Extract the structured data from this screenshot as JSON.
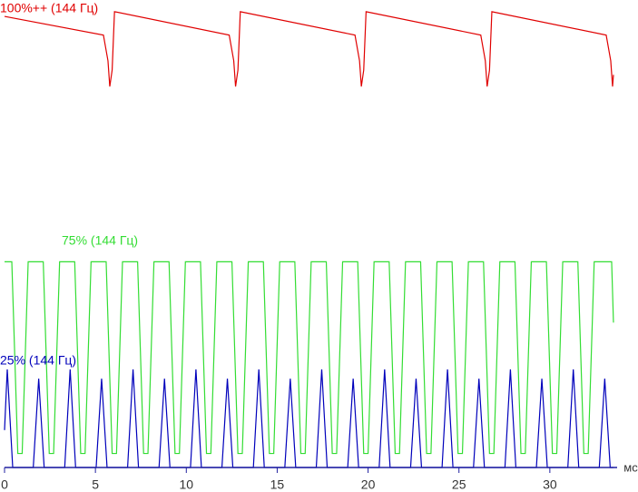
{
  "chart_data": {
    "type": "line",
    "x_unit": "мс",
    "xlim": [
      0,
      34.8
    ],
    "ylim": [
      0,
      100
    ],
    "xticks": [
      0,
      5,
      10,
      15,
      20,
      25,
      30
    ],
    "series": [
      {
        "name": "100%++ (144 Гц)",
        "color": "#e00000",
        "x": [
          0,
          5.44,
          5.69,
          5.79,
          5.92,
          6.05,
          12.36,
          12.61,
          12.71,
          12.84,
          12.97,
          19.28,
          19.53,
          19.63,
          19.76,
          19.89,
          26.2,
          26.45,
          26.55,
          26.68,
          26.81,
          33.1,
          33.35,
          33.45,
          33.5
        ],
        "values": [
          96.5,
          92.5,
          87,
          81.5,
          85,
          97.5,
          92.5,
          87,
          81.5,
          85,
          97.5,
          92.5,
          87,
          81.5,
          85,
          97.5,
          92.5,
          87,
          81.5,
          85,
          97.5,
          92.5,
          87,
          81.5,
          84
        ]
      },
      {
        "name": "75% (144 Гц)",
        "color": "#33dd33",
        "x": [
          0,
          0.4,
          0.73,
          0.97,
          1.3,
          2.13,
          2.46,
          2.7,
          3.03,
          3.86,
          4.19,
          4.43,
          4.76,
          5.59,
          5.92,
          6.16,
          6.49,
          7.32,
          7.65,
          7.89,
          8.22,
          9.05,
          9.38,
          9.62,
          9.95,
          10.78,
          11.11,
          11.35,
          11.68,
          12.51,
          12.84,
          13.08,
          13.41,
          14.24,
          14.57,
          14.81,
          15.14,
          15.97,
          16.3,
          16.54,
          16.87,
          17.7,
          18.03,
          18.27,
          18.6,
          19.43,
          19.76,
          20.0,
          20.33,
          21.16,
          21.49,
          21.73,
          22.06,
          22.89,
          23.22,
          23.46,
          23.79,
          24.62,
          24.95,
          25.19,
          25.52,
          26.35,
          26.68,
          26.92,
          27.25,
          28.08,
          28.41,
          28.65,
          28.98,
          29.81,
          30.14,
          30.38,
          30.71,
          31.54,
          31.87,
          32.11,
          32.44,
          33.4,
          33.5
        ],
        "values": [
          44,
          44,
          3,
          3,
          44,
          44,
          3,
          3,
          44,
          44,
          3,
          3,
          44,
          44,
          3,
          3,
          44,
          44,
          3,
          3,
          44,
          44,
          3,
          3,
          44,
          44,
          3,
          3,
          44,
          44,
          3,
          3,
          44,
          44,
          3,
          3,
          44,
          44,
          3,
          3,
          44,
          44,
          3,
          3,
          44,
          44,
          3,
          3,
          44,
          44,
          3,
          3,
          44,
          44,
          3,
          3,
          44,
          44,
          3,
          3,
          44,
          44,
          3,
          3,
          44,
          44,
          3,
          3,
          44,
          44,
          3,
          3,
          44,
          44,
          3,
          3,
          44,
          44,
          31
        ]
      },
      {
        "name": "25% (144 Гц)",
        "color": "#0000bb",
        "x": [
          0,
          0.15,
          0.45,
          1.58,
          1.88,
          2.18,
          3.31,
          3.61,
          3.91,
          5.04,
          5.34,
          5.64,
          6.77,
          7.07,
          7.37,
          8.5,
          8.8,
          9.1,
          10.23,
          10.53,
          10.83,
          11.96,
          12.26,
          12.56,
          13.69,
          13.99,
          14.29,
          15.42,
          15.72,
          16.02,
          17.15,
          17.45,
          17.75,
          18.88,
          19.18,
          19.48,
          20.61,
          20.91,
          21.21,
          22.34,
          22.64,
          22.94,
          24.07,
          24.37,
          24.67,
          25.8,
          26.1,
          26.4,
          27.53,
          27.83,
          28.13,
          29.26,
          29.56,
          29.86,
          30.99,
          31.29,
          31.59,
          32.72,
          33.02,
          33.32,
          33.5
        ],
        "values": [
          8,
          21,
          0,
          0,
          19,
          0,
          0,
          21,
          0,
          0,
          19,
          0,
          0,
          21,
          0,
          0,
          19,
          0,
          0,
          21,
          0,
          0,
          19,
          0,
          0,
          21,
          0,
          0,
          19,
          0,
          0,
          21,
          0,
          0,
          19,
          0,
          0,
          21,
          0,
          0,
          19,
          0,
          0,
          21,
          0,
          0,
          19,
          0,
          0,
          21,
          0,
          0,
          19,
          0,
          0,
          21,
          0,
          0,
          19,
          0,
          0
        ]
      }
    ]
  }
}
